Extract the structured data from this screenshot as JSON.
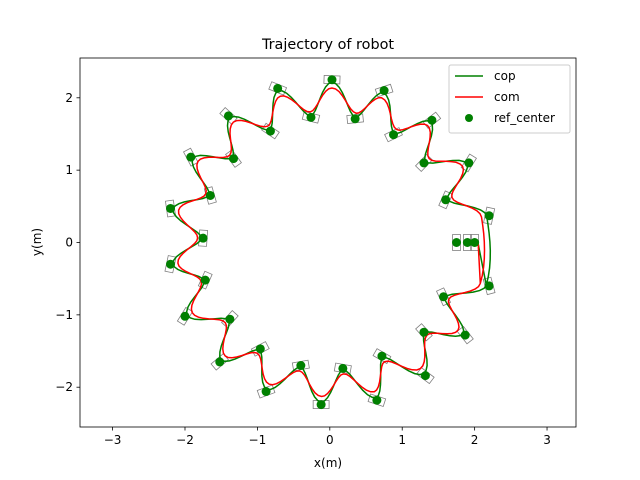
{
  "chart_data": {
    "type": "line",
    "title": "Trajectory of robot",
    "xlabel": "x(m)",
    "ylabel": "y(m)",
    "xlim": [
      -3.45,
      3.4
    ],
    "ylim": [
      -2.55,
      2.55
    ],
    "xticks": [
      -3,
      -2,
      -1,
      0,
      1,
      2,
      3
    ],
    "yticks": [
      -2,
      -1,
      0,
      1,
      2
    ],
    "xtick_labels": [
      "−3",
      "−2",
      "−1",
      "0",
      "1",
      "2",
      "3"
    ],
    "ytick_labels": [
      "−2",
      "−1",
      "0",
      "1",
      "2"
    ],
    "grid": false,
    "legend_position": "top-right",
    "series": [
      {
        "name": "cop",
        "color": "#008000",
        "kind": "line"
      },
      {
        "name": "com",
        "color": "#ff0000",
        "kind": "line"
      },
      {
        "name": "ref_center",
        "color": "#008000",
        "kind": "scatter"
      }
    ],
    "ref_center": [
      [
        1.75,
        0.0
      ],
      [
        1.9,
        0.0
      ],
      [
        2.0,
        0.0
      ],
      [
        2.2,
        -0.6
      ],
      [
        1.57,
        -0.75
      ],
      [
        1.87,
        -1.28
      ],
      [
        1.3,
        -1.24
      ],
      [
        1.32,
        -1.84
      ],
      [
        0.72,
        -1.57
      ],
      [
        0.65,
        -2.18
      ],
      [
        0.18,
        -1.74
      ],
      [
        -0.12,
        -2.24
      ],
      [
        -0.4,
        -1.7
      ],
      [
        -0.88,
        -2.06
      ],
      [
        -0.96,
        -1.47
      ],
      [
        -1.52,
        -1.65
      ],
      [
        -1.38,
        -1.06
      ],
      [
        -2.0,
        -1.02
      ],
      [
        -1.72,
        -0.52
      ],
      [
        -2.2,
        -0.3
      ],
      [
        -1.75,
        0.06
      ],
      [
        -2.2,
        0.47
      ],
      [
        -1.65,
        0.65
      ],
      [
        -1.92,
        1.18
      ],
      [
        -1.33,
        1.16
      ],
      [
        -1.4,
        1.75
      ],
      [
        -0.82,
        1.54
      ],
      [
        -0.72,
        2.13
      ],
      [
        -0.26,
        1.73
      ],
      [
        0.03,
        2.25
      ],
      [
        0.35,
        1.71
      ],
      [
        0.75,
        2.1
      ],
      [
        0.88,
        1.49
      ],
      [
        1.41,
        1.69
      ],
      [
        1.3,
        1.1
      ],
      [
        1.92,
        1.1
      ],
      [
        1.6,
        0.59
      ],
      [
        2.2,
        0.37
      ]
    ],
    "footprints": [
      [
        1.75,
        0.0,
        90
      ],
      [
        1.9,
        0.0,
        90
      ],
      [
        2.0,
        0.0,
        90
      ],
      [
        2.2,
        -0.6,
        105
      ],
      [
        1.57,
        -0.75,
        115
      ],
      [
        1.87,
        -1.28,
        128
      ],
      [
        1.3,
        -1.24,
        132
      ],
      [
        1.32,
        -1.84,
        143
      ],
      [
        0.72,
        -1.57,
        150
      ],
      [
        0.65,
        -2.18,
        162
      ],
      [
        0.18,
        -1.74,
        170
      ],
      [
        -0.12,
        -2.24,
        180
      ],
      [
        -0.4,
        -1.7,
        190
      ],
      [
        -0.88,
        -2.06,
        200
      ],
      [
        -0.96,
        -1.47,
        208
      ],
      [
        -1.52,
        -1.65,
        220
      ],
      [
        -1.38,
        -1.06,
        228
      ],
      [
        -2.0,
        -1.02,
        238
      ],
      [
        -1.72,
        -0.52,
        246
      ],
      [
        -2.2,
        -0.3,
        258
      ],
      [
        -1.75,
        0.06,
        266
      ],
      [
        -2.2,
        0.47,
        278
      ],
      [
        -1.65,
        0.65,
        286
      ],
      [
        -1.92,
        1.18,
        298
      ],
      [
        -1.33,
        1.16,
        306
      ],
      [
        -1.4,
        1.75,
        318
      ],
      [
        -0.82,
        1.54,
        326
      ],
      [
        -0.72,
        2.13,
        338
      ],
      [
        -0.26,
        1.73,
        346
      ],
      [
        0.03,
        2.25,
        358
      ],
      [
        0.35,
        1.71,
        6
      ],
      [
        0.75,
        2.1,
        18
      ],
      [
        0.88,
        1.49,
        26
      ],
      [
        1.41,
        1.69,
        38
      ],
      [
        1.3,
        1.1,
        46
      ],
      [
        1.92,
        1.1,
        58
      ],
      [
        1.6,
        0.59,
        66
      ],
      [
        2.2,
        0.37,
        78
      ]
    ]
  }
}
